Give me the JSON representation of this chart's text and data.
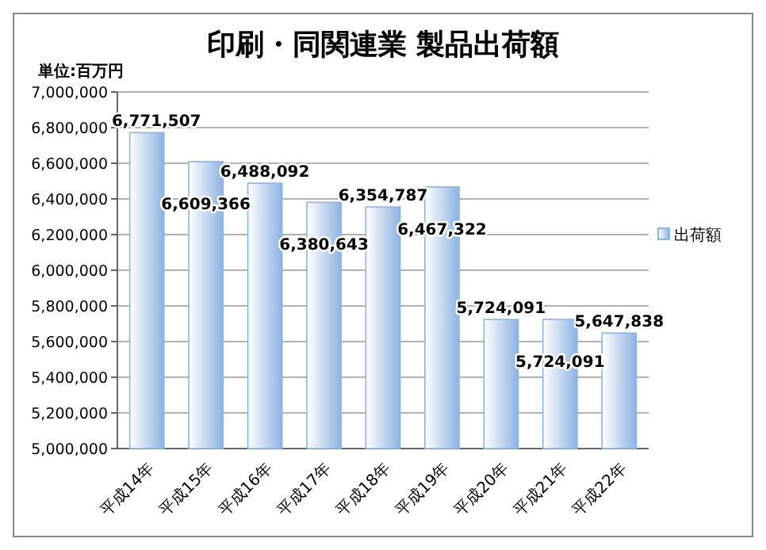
{
  "chart_data": {
    "type": "bar",
    "title": "印刷・同関連業 製品出荷額",
    "annotations": [
      "単位:百万円"
    ],
    "categories": [
      "平成14年",
      "平成15年",
      "平成16年",
      "平成17年",
      "平成18年",
      "平成19年",
      "平成20年",
      "平成21年",
      "平成22年"
    ],
    "series": [
      {
        "name": "出荷額",
        "color": "#8db3e2",
        "values": [
          6771507,
          6609366,
          6488092,
          6380643,
          6354787,
          6467322,
          5724091,
          5724091,
          5647838
        ]
      }
    ],
    "ylim": [
      5000000,
      7000000
    ],
    "yticks": [
      {
        "value": 5000000,
        "label": "5,000,000"
      },
      {
        "value": 5200000,
        "label": "5,200,000"
      },
      {
        "value": 5400000,
        "label": "5,400,000"
      },
      {
        "value": 5600000,
        "label": "5,600,000"
      },
      {
        "value": 5800000,
        "label": "5,800,000"
      },
      {
        "value": 6000000,
        "label": "6,000,000"
      },
      {
        "value": 6200000,
        "label": "6,200,000"
      },
      {
        "value": 6400000,
        "label": "6,400,000"
      },
      {
        "value": 6600000,
        "label": "6,600,000"
      },
      {
        "value": 6800000,
        "label": "6,800,000"
      },
      {
        "value": 7000000,
        "label": "7,000,000"
      }
    ],
    "value_labels": [
      "6,771,507",
      "6,609,366",
      "6,488,092",
      "6,380,643",
      "6,354,787",
      "6,467,322",
      "5,724,091",
      "5,724,091",
      "5,647,838"
    ],
    "grid": "y",
    "legend": "right"
  }
}
